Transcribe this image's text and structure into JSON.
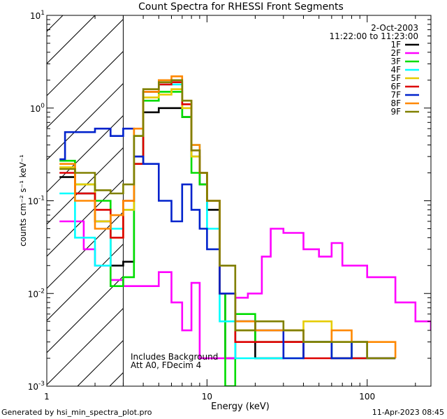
{
  "chart_data": {
    "type": "line",
    "title": "Count Spectra for RHESSI Front Segments",
    "xlabel": "Energy (keV)",
    "ylabel": "counts cm⁻² s⁻¹ keV⁻¹",
    "xscale": "log",
    "yscale": "log",
    "xlim": [
      1,
      250
    ],
    "ylim": [
      0.001,
      10
    ],
    "x_ticks": [
      {
        "value": 1,
        "label": "1"
      },
      {
        "value": 10,
        "label": "10"
      },
      {
        "value": 100,
        "label": "100"
      }
    ],
    "y_ticks": [
      {
        "value": 10,
        "base": "10",
        "exp": "1"
      },
      {
        "value": 1,
        "base": "10",
        "exp": "0"
      },
      {
        "value": 0.1,
        "base": "10",
        "exp": "-1"
      },
      {
        "value": 0.01,
        "base": "10",
        "exp": "-2"
      },
      {
        "value": 0.001,
        "base": "10",
        "exp": "-3"
      }
    ],
    "hatched_region_kev": [
      1,
      3
    ],
    "date": "2-Oct-2003",
    "time_range": "11:22:00 to 11:23:00",
    "annotations": [
      "Includes Background",
      "Att A0, FDecim 4"
    ],
    "legend": [
      {
        "name": "1F",
        "color": "#000000"
      },
      {
        "name": "2F",
        "color": "#ff00ff"
      },
      {
        "name": "3F",
        "color": "#00dd00"
      },
      {
        "name": "4F",
        "color": "#00ffff"
      },
      {
        "name": "5F",
        "color": "#e6cc00"
      },
      {
        "name": "6F",
        "color": "#dd0000"
      },
      {
        "name": "7F",
        "color": "#0022cc"
      },
      {
        "name": "8F",
        "color": "#ff8800"
      },
      {
        "name": "9F",
        "color": "#808000"
      }
    ],
    "series": [
      {
        "name": "1F",
        "color": "#000000",
        "points": [
          [
            1.2,
            0.18
          ],
          [
            1.5,
            0.12
          ],
          [
            2,
            0.06
          ],
          [
            2.5,
            0.02
          ],
          [
            3,
            0.022
          ],
          [
            3.5,
            0.3
          ],
          [
            4,
            0.9
          ],
          [
            5,
            1.0
          ],
          [
            6,
            1.0
          ],
          [
            7,
            0.8
          ],
          [
            8,
            0.3
          ],
          [
            9,
            0.15
          ],
          [
            10,
            0.08
          ],
          [
            12,
            0.01
          ],
          [
            13,
            0.002
          ],
          [
            15,
            0.005
          ],
          [
            20,
            0.002
          ],
          [
            30,
            0.003
          ],
          [
            40,
            0.003
          ],
          [
            60,
            0.002
          ],
          [
            80,
            0.002
          ],
          [
            100,
            0.002
          ],
          [
            150,
            0.002
          ]
        ]
      },
      {
        "name": "2F",
        "color": "#ff00ff",
        "points": [
          [
            1.2,
            0.06
          ],
          [
            1.5,
            0.06
          ],
          [
            1.7,
            0.03
          ],
          [
            2,
            0.02
          ],
          [
            2.5,
            0.014
          ],
          [
            3,
            0.012
          ],
          [
            4,
            0.012
          ],
          [
            5,
            0.017
          ],
          [
            6,
            0.008
          ],
          [
            7,
            0.004
          ],
          [
            8,
            0.013
          ],
          [
            9,
            0.002
          ],
          [
            12,
            0.002
          ],
          [
            15,
            0.009
          ],
          [
            18,
            0.01
          ],
          [
            22,
            0.025
          ],
          [
            25,
            0.05
          ],
          [
            30,
            0.045
          ],
          [
            40,
            0.03
          ],
          [
            50,
            0.025
          ],
          [
            60,
            0.035
          ],
          [
            70,
            0.02
          ],
          [
            100,
            0.015
          ],
          [
            150,
            0.008
          ],
          [
            200,
            0.005
          ],
          [
            250,
            0.004
          ]
        ]
      },
      {
        "name": "3F",
        "color": "#00dd00",
        "points": [
          [
            1.2,
            0.27
          ],
          [
            1.5,
            0.15
          ],
          [
            2,
            0.1
          ],
          [
            2.5,
            0.012
          ],
          [
            3,
            0.015
          ],
          [
            3.5,
            0.25
          ],
          [
            4,
            1.2
          ],
          [
            5,
            1.5
          ],
          [
            6,
            1.5
          ],
          [
            7,
            0.8
          ],
          [
            8,
            0.2
          ],
          [
            9,
            0.15
          ],
          [
            10,
            0.1
          ],
          [
            12,
            0.01
          ],
          [
            13,
            0.001
          ],
          [
            15,
            0.006
          ],
          [
            20,
            0.003
          ],
          [
            30,
            0.003
          ],
          [
            40,
            0.003
          ],
          [
            60,
            0.002
          ],
          [
            80,
            0.003
          ],
          [
            100,
            0.002
          ],
          [
            150,
            0.002
          ]
        ]
      },
      {
        "name": "4F",
        "color": "#00ffff",
        "points": [
          [
            1.2,
            0.12
          ],
          [
            1.5,
            0.04
          ],
          [
            2,
            0.02
          ],
          [
            2.5,
            0.05
          ],
          [
            3,
            0.08
          ],
          [
            3.5,
            0.5
          ],
          [
            4,
            1.5
          ],
          [
            5,
            1.8
          ],
          [
            6,
            1.8
          ],
          [
            7,
            1.0
          ],
          [
            8,
            0.4
          ],
          [
            9,
            0.2
          ],
          [
            10,
            0.05
          ],
          [
            12,
            0.005
          ],
          [
            15,
            0.002
          ],
          [
            20,
            0.002
          ],
          [
            30,
            0.002
          ],
          [
            40,
            0.003
          ],
          [
            60,
            0.002
          ],
          [
            80,
            0.002
          ],
          [
            100,
            0.002
          ],
          [
            150,
            0.002
          ]
        ]
      },
      {
        "name": "5F",
        "color": "#e6cc00",
        "points": [
          [
            1.2,
            0.23
          ],
          [
            1.5,
            0.15
          ],
          [
            2,
            0.06
          ],
          [
            2.5,
            0.04
          ],
          [
            3,
            0.08
          ],
          [
            3.5,
            0.5
          ],
          [
            4,
            1.3
          ],
          [
            5,
            1.4
          ],
          [
            6,
            1.6
          ],
          [
            7,
            1.0
          ],
          [
            8,
            0.3
          ],
          [
            9,
            0.2
          ],
          [
            10,
            0.1
          ],
          [
            12,
            0.01
          ],
          [
            15,
            0.004
          ],
          [
            20,
            0.005
          ],
          [
            30,
            0.004
          ],
          [
            40,
            0.005
          ],
          [
            60,
            0.003
          ],
          [
            80,
            0.003
          ],
          [
            100,
            0.002
          ],
          [
            150,
            0.002
          ]
        ]
      },
      {
        "name": "6F",
        "color": "#dd0000",
        "points": [
          [
            1.2,
            0.2
          ],
          [
            1.5,
            0.12
          ],
          [
            2,
            0.08
          ],
          [
            2.5,
            0.04
          ],
          [
            3,
            0.1
          ],
          [
            3.5,
            0.25
          ],
          [
            4,
            1.5
          ],
          [
            5,
            1.8
          ],
          [
            6,
            1.9
          ],
          [
            7,
            1.1
          ],
          [
            8,
            0.35
          ],
          [
            9,
            0.2
          ],
          [
            10,
            0.1
          ],
          [
            12,
            0.01
          ],
          [
            15,
            0.003
          ],
          [
            20,
            0.003
          ],
          [
            30,
            0.003
          ],
          [
            40,
            0.002
          ],
          [
            60,
            0.002
          ],
          [
            80,
            0.002
          ],
          [
            100,
            0.002
          ],
          [
            150,
            0.002
          ]
        ]
      },
      {
        "name": "7F",
        "color": "#0022cc",
        "points": [
          [
            1.2,
            0.28
          ],
          [
            1.3,
            0.55
          ],
          [
            1.6,
            0.55
          ],
          [
            2,
            0.6
          ],
          [
            2.5,
            0.5
          ],
          [
            3,
            0.6
          ],
          [
            3.5,
            0.3
          ],
          [
            4,
            0.25
          ],
          [
            5,
            0.1
          ],
          [
            6,
            0.06
          ],
          [
            7,
            0.15
          ],
          [
            8,
            0.08
          ],
          [
            9,
            0.05
          ],
          [
            10,
            0.03
          ],
          [
            12,
            0.01
          ],
          [
            15,
            0.005
          ],
          [
            20,
            0.004
          ],
          [
            30,
            0.002
          ],
          [
            40,
            0.003
          ],
          [
            60,
            0.002
          ],
          [
            80,
            0.003
          ],
          [
            100,
            0.002
          ],
          [
            150,
            0.002
          ]
        ]
      },
      {
        "name": "8F",
        "color": "#ff8800",
        "points": [
          [
            1.2,
            0.25
          ],
          [
            1.5,
            0.1
          ],
          [
            2,
            0.05
          ],
          [
            2.5,
            0.07
          ],
          [
            3,
            0.1
          ],
          [
            3.5,
            0.6
          ],
          [
            4,
            1.5
          ],
          [
            5,
            2.0
          ],
          [
            6,
            2.2
          ],
          [
            7,
            1.2
          ],
          [
            8,
            0.4
          ],
          [
            9,
            0.2
          ],
          [
            10,
            0.1
          ],
          [
            12,
            0.02
          ],
          [
            15,
            0.005
          ],
          [
            20,
            0.004
          ],
          [
            30,
            0.004
          ],
          [
            40,
            0.003
          ],
          [
            60,
            0.004
          ],
          [
            80,
            0.003
          ],
          [
            100,
            0.003
          ],
          [
            150,
            0.002
          ]
        ]
      },
      {
        "name": "9F",
        "color": "#808000",
        "points": [
          [
            1.2,
            0.22
          ],
          [
            1.5,
            0.2
          ],
          [
            2,
            0.13
          ],
          [
            2.5,
            0.12
          ],
          [
            3,
            0.15
          ],
          [
            3.5,
            0.5
          ],
          [
            4,
            1.6
          ],
          [
            5,
            1.9
          ],
          [
            6,
            2.0
          ],
          [
            7,
            1.2
          ],
          [
            8,
            0.35
          ],
          [
            9,
            0.2
          ],
          [
            10,
            0.1
          ],
          [
            12,
            0.02
          ],
          [
            15,
            0.004
          ],
          [
            20,
            0.005
          ],
          [
            30,
            0.004
          ],
          [
            40,
            0.003
          ],
          [
            60,
            0.003
          ],
          [
            80,
            0.003
          ],
          [
            100,
            0.002
          ],
          [
            150,
            0.002
          ]
        ]
      }
    ]
  },
  "footer": {
    "generated_by": "Generated by hsi_min_spectra_plot.pro",
    "timestamp": "11-Apr-2023 08:45"
  }
}
